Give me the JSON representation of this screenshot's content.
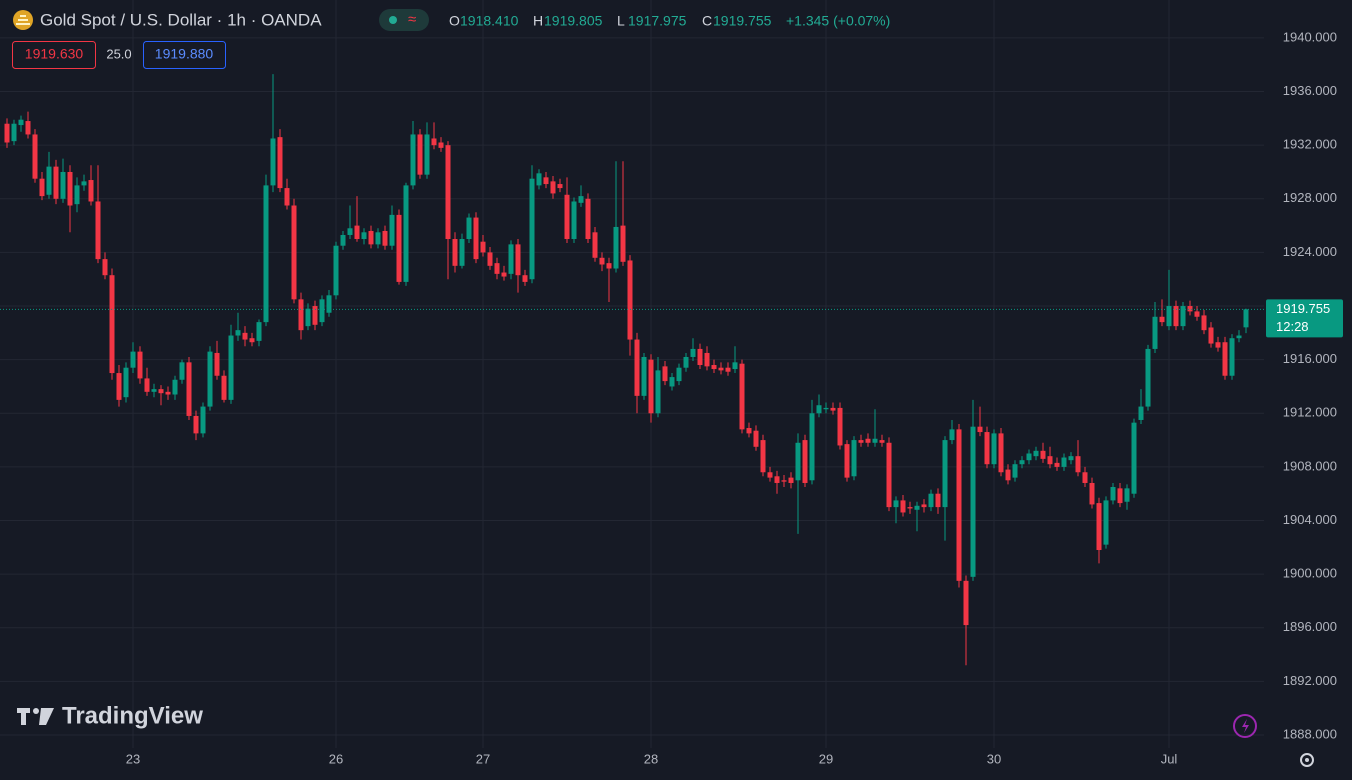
{
  "symbol_title": "Gold Spot / U.S. Dollar · 1h · OANDA",
  "ohlc_header": [
    {
      "label": "O",
      "value": "1918.410"
    },
    {
      "label": "H",
      "value": "1919.805"
    },
    {
      "label": "L",
      "value": "1917.975"
    },
    {
      "label": "C",
      "value": "1919.755"
    }
  ],
  "change": "+1.345 (+0.07%)",
  "quote": {
    "bid": "1919.630",
    "spread": "25.0",
    "ask": "1919.880"
  },
  "countdown": "12:28",
  "watermark": "TradingView",
  "chart_data": {
    "type": "candlestick",
    "up_color": "#089981",
    "down_color": "#f23645",
    "grid": true,
    "ylim": [
      1887.03,
      1942.83
    ],
    "yticks": [
      {
        "value": 1888,
        "label": "1888.000"
      },
      {
        "value": 1892,
        "label": "1892.000"
      },
      {
        "value": 1896,
        "label": "1896.000"
      },
      {
        "value": 1900,
        "label": "1900.000"
      },
      {
        "value": 1904,
        "label": "1904.000"
      },
      {
        "value": 1908,
        "label": "1908.000"
      },
      {
        "value": 1912,
        "label": "1912.000"
      },
      {
        "value": 1916,
        "label": "1916.000"
      },
      {
        "value": 1920,
        "label": "1920.000"
      },
      {
        "value": 1924,
        "label": "1924.000"
      },
      {
        "value": 1928,
        "label": "1928.000"
      },
      {
        "value": 1932,
        "label": "1932.000"
      },
      {
        "value": 1936,
        "label": "1936.000"
      },
      {
        "value": 1940,
        "label": "1940.000"
      }
    ],
    "categories": [
      null,
      null,
      null,
      null,
      null,
      null,
      null,
      null,
      null,
      null,
      null,
      null,
      null,
      null,
      null,
      null,
      null,
      null,
      "23",
      null,
      null,
      null,
      null,
      null,
      null,
      null,
      null,
      null,
      null,
      null,
      null,
      null,
      null,
      null,
      null,
      null,
      null,
      null,
      null,
      null,
      null,
      null,
      null,
      null,
      null,
      null,
      null,
      "26",
      null,
      null,
      null,
      null,
      null,
      null,
      null,
      null,
      null,
      null,
      null,
      null,
      null,
      null,
      null,
      null,
      null,
      null,
      null,
      null,
      "27",
      null,
      null,
      null,
      null,
      null,
      null,
      null,
      null,
      null,
      null,
      null,
      null,
      null,
      null,
      null,
      null,
      null,
      null,
      null,
      null,
      null,
      null,
      null,
      "28",
      null,
      null,
      null,
      null,
      null,
      null,
      null,
      null,
      null,
      null,
      null,
      null,
      null,
      null,
      null,
      null,
      null,
      null,
      null,
      null,
      null,
      null,
      null,
      null,
      "29",
      null,
      null,
      null,
      null,
      null,
      null,
      null,
      null,
      null,
      null,
      null,
      null,
      null,
      null,
      null,
      null,
      null,
      null,
      null,
      null,
      null,
      null,
      null,
      "30",
      null,
      null,
      null,
      null,
      null,
      null,
      null,
      null,
      null,
      null,
      null,
      null,
      null,
      null,
      null,
      null,
      null,
      null,
      null,
      null,
      null,
      null,
      null,
      null,
      "Jul",
      null,
      null,
      null,
      null,
      null,
      null,
      null,
      null,
      null,
      null,
      null
    ],
    "open": [
      1933.6,
      1932.3,
      1933.5,
      1933.8,
      1932.8,
      1929.5,
      1928.3,
      1930.4,
      1928.0,
      1930.0,
      1927.6,
      1929.0,
      1929.4,
      1927.8,
      1923.5,
      1922.3,
      1915.0,
      1913.2,
      1915.4,
      1916.6,
      1914.6,
      1913.6,
      1913.8,
      1913.6,
      1913.4,
      1914.5,
      1915.8,
      1911.8,
      1910.5,
      1912.5,
      1916.5,
      1914.8,
      1913.0,
      1917.8,
      1918.0,
      1917.6,
      1917.4,
      1918.8,
      1929.0,
      1932.6,
      1928.8,
      1927.5,
      1920.5,
      1918.5,
      1920.0,
      1918.8,
      1919.5,
      1920.8,
      1924.5,
      1925.3,
      1926.0,
      1925.0,
      1925.6,
      1924.6,
      1925.6,
      1924.5,
      1926.8,
      1921.8,
      1929.0,
      1932.8,
      1929.8,
      1932.5,
      1932.2,
      1932.0,
      1925.0,
      1923.0,
      1925.0,
      1926.6,
      1924.8,
      1924.0,
      1923.2,
      1922.5,
      1922.4,
      1924.6,
      1922.3,
      1922.0,
      1929.0,
      1929.6,
      1929.3,
      1929.1,
      1928.3,
      1925.0,
      1927.7,
      1928.0,
      1925.5,
      1923.6,
      1923.2,
      1922.8,
      1926.0,
      1923.4,
      1917.5,
      1913.3,
      1916.0,
      1912.0,
      1915.5,
      1914.0,
      1914.4,
      1915.4,
      1916.2,
      1916.8,
      1916.5,
      1915.6,
      1915.4,
      1915.4,
      1915.3,
      1915.7,
      1910.9,
      1910.7,
      1910.0,
      1907.6,
      1907.3,
      1907.0,
      1907.2,
      1907.0,
      1910.0,
      1907.0,
      1912.0,
      1912.3,
      1912.4,
      1912.4,
      1909.7,
      1907.3,
      1910.0,
      1910.1,
      1909.8,
      1910.0,
      1909.8,
      1905.0,
      1905.5,
      1905.0,
      1904.8,
      1905.2,
      1905.0,
      1906.0,
      1905.0,
      1910.0,
      1910.8,
      1899.5,
      1899.8,
      1911.0,
      1910.6,
      1908.2,
      1910.5,
      1907.8,
      1907.2,
      1908.2,
      1908.5,
      1908.8,
      1909.2,
      1908.8,
      1908.3,
      1908.0,
      1908.5,
      1908.8,
      1907.6,
      1906.8,
      1905.3,
      1902.2,
      1905.5,
      1906.4,
      1905.4,
      1906.0,
      1911.5,
      1912.5,
      1916.8,
      1919.2,
      1918.5,
      1920.0,
      1918.5,
      1920.0,
      1919.6,
      1919.3,
      1918.4,
      1917.3,
      1917.3,
      1914.8,
      1917.6,
      1918.41
    ],
    "high": [
      1934.0,
      1933.9,
      1934.2,
      1934.5,
      1933.2,
      1930.0,
      1931.5,
      1930.9,
      1931.0,
      1930.5,
      1929.6,
      1929.8,
      1930.5,
      1930.5,
      1924.0,
      1922.8,
      1915.6,
      1915.8,
      1917.3,
      1917.0,
      1915.4,
      1914.2,
      1914.1,
      1914.0,
      1914.8,
      1916.0,
      1916.2,
      1912.2,
      1912.8,
      1917.0,
      1917.4,
      1915.2,
      1918.6,
      1919.5,
      1918.5,
      1918.0,
      1919.0,
      1929.8,
      1937.3,
      1933.2,
      1929.5,
      1928.0,
      1921.0,
      1920.2,
      1920.4,
      1920.8,
      1921.2,
      1924.8,
      1925.6,
      1927.5,
      1928.2,
      1925.8,
      1926.0,
      1925.8,
      1926.0,
      1927.5,
      1927.2,
      1929.2,
      1933.8,
      1933.2,
      1933.7,
      1933.7,
      1932.6,
      1932.3,
      1925.5,
      1925.4,
      1926.9,
      1927.0,
      1925.3,
      1924.4,
      1923.6,
      1923.0,
      1924.9,
      1925.0,
      1922.7,
      1930.5,
      1930.2,
      1930.0,
      1929.7,
      1929.5,
      1929.6,
      1928.1,
      1929.0,
      1928.4,
      1925.9,
      1924.0,
      1923.6,
      1930.8,
      1930.8,
      1923.8,
      1918.0,
      1916.5,
      1916.4,
      1916.2,
      1915.9,
      1915.0,
      1915.7,
      1916.5,
      1917.6,
      1917.2,
      1917.0,
      1916.0,
      1915.8,
      1915.8,
      1917.0,
      1916.0,
      1911.3,
      1911.1,
      1910.4,
      1908.0,
      1907.7,
      1907.4,
      1907.6,
      1910.5,
      1910.4,
      1913.0,
      1913.4,
      1912.8,
      1912.8,
      1912.8,
      1910.0,
      1910.3,
      1910.4,
      1910.5,
      1912.3,
      1910.4,
      1910.2,
      1905.8,
      1905.9,
      1905.4,
      1905.4,
      1905.6,
      1906.3,
      1906.4,
      1910.3,
      1911.5,
      1911.2,
      1899.9,
      1913.0,
      1912.5,
      1911.0,
      1910.8,
      1910.9,
      1908.2,
      1908.5,
      1908.8,
      1909.3,
      1909.5,
      1909.8,
      1909.5,
      1908.7,
      1909.0,
      1909.1,
      1910.0,
      1908.0,
      1907.2,
      1905.7,
      1905.8,
      1906.8,
      1906.8,
      1906.7,
      1911.6,
      1913.8,
      1917.1,
      1920.3,
      1920.5,
      1922.7,
      1920.4,
      1920.3,
      1920.4,
      1920.0,
      1919.7,
      1918.8,
      1917.7,
      1917.7,
      1917.9,
      1918.2,
      1919.805
    ],
    "low": [
      1931.8,
      1932.0,
      1933.0,
      1932.5,
      1929.2,
      1927.9,
      1928.0,
      1927.6,
      1927.7,
      1925.5,
      1927.0,
      1928.6,
      1927.5,
      1923.2,
      1922.0,
      1914.5,
      1912.5,
      1912.8,
      1915.0,
      1914.2,
      1913.3,
      1913.2,
      1912.6,
      1913.0,
      1913.0,
      1914.2,
      1911.5,
      1910.0,
      1910.2,
      1912.2,
      1914.5,
      1912.8,
      1912.7,
      1917.4,
      1917.0,
      1917.0,
      1917.0,
      1918.5,
      1928.5,
      1928.5,
      1927.2,
      1920.2,
      1917.5,
      1918.2,
      1918.2,
      1918.5,
      1919.2,
      1920.5,
      1924.2,
      1925.0,
      1924.8,
      1924.6,
      1924.3,
      1924.3,
      1924.2,
      1924.2,
      1921.6,
      1921.5,
      1928.7,
      1929.5,
      1929.5,
      1931.7,
      1931.5,
      1922.0,
      1922.5,
      1922.8,
      1924.7,
      1923.2,
      1923.7,
      1922.7,
      1922.0,
      1921.9,
      1922.0,
      1921.0,
      1921.5,
      1921.7,
      1928.7,
      1928.8,
      1928.0,
      1928.5,
      1924.7,
      1924.7,
      1927.4,
      1924.7,
      1923.3,
      1922.6,
      1920.3,
      1922.5,
      1923.0,
      1916.3,
      1912.0,
      1913.0,
      1911.3,
      1911.7,
      1914.1,
      1913.7,
      1914.1,
      1915.1,
      1915.9,
      1915.3,
      1915.2,
      1915.0,
      1914.9,
      1914.8,
      1915.0,
      1910.5,
      1910.2,
      1909.2,
      1907.3,
      1906.9,
      1906.0,
      1906.5,
      1906.4,
      1903.0,
      1906.5,
      1906.7,
      1911.7,
      1912.0,
      1911.9,
      1909.3,
      1906.9,
      1907.0,
      1909.5,
      1909.5,
      1909.5,
      1909.5,
      1904.7,
      1903.8,
      1904.3,
      1904.5,
      1903.2,
      1904.6,
      1904.7,
      1904.5,
      1902.5,
      1909.7,
      1899.0,
      1893.2,
      1899.5,
      1910.3,
      1907.9,
      1907.9,
      1907.3,
      1906.7,
      1906.9,
      1907.9,
      1908.2,
      1908.5,
      1908.3,
      1907.9,
      1907.7,
      1907.7,
      1908.2,
      1907.3,
      1906.5,
      1904.9,
      1900.8,
      1901.9,
      1905.2,
      1905.0,
      1904.8,
      1905.7,
      1911.2,
      1912.2,
      1916.5,
      1918.5,
      1918.2,
      1918.2,
      1918.2,
      1919.3,
      1918.9,
      1917.9,
      1916.9,
      1916.6,
      1914.5,
      1914.5,
      1917.3,
      1917.975
    ],
    "close": [
      1932.2,
      1933.6,
      1933.9,
      1932.8,
      1929.5,
      1928.2,
      1930.4,
      1928.0,
      1930.0,
      1927.5,
      1929.0,
      1929.3,
      1927.8,
      1923.5,
      1922.3,
      1915.0,
      1913.0,
      1915.4,
      1916.6,
      1914.6,
      1913.6,
      1913.8,
      1913.5,
      1913.4,
      1914.5,
      1915.8,
      1911.8,
      1910.5,
      1912.5,
      1916.6,
      1914.8,
      1913.0,
      1917.8,
      1918.2,
      1917.5,
      1917.3,
      1918.8,
      1929.0,
      1932.5,
      1928.8,
      1927.5,
      1920.5,
      1918.2,
      1919.8,
      1918.6,
      1920.5,
      1920.8,
      1924.5,
      1925.3,
      1925.8,
      1925.0,
      1925.5,
      1924.6,
      1925.5,
      1924.5,
      1926.8,
      1921.8,
      1929.0,
      1932.8,
      1929.8,
      1932.8,
      1932.0,
      1931.8,
      1925.0,
      1923.0,
      1925.0,
      1926.6,
      1923.5,
      1924.0,
      1923.0,
      1922.4,
      1922.2,
      1924.6,
      1922.3,
      1921.8,
      1929.5,
      1929.9,
      1929.1,
      1928.4,
      1928.8,
      1925.0,
      1927.8,
      1928.2,
      1925.0,
      1923.6,
      1923.1,
      1922.8,
      1925.9,
      1923.3,
      1917.5,
      1913.3,
      1916.2,
      1912.0,
      1915.2,
      1914.4,
      1914.7,
      1915.4,
      1916.2,
      1916.8,
      1915.6,
      1915.5,
      1915.3,
      1915.2,
      1915.1,
      1915.8,
      1910.8,
      1910.5,
      1909.5,
      1907.6,
      1907.2,
      1906.8,
      1906.9,
      1906.8,
      1909.8,
      1906.8,
      1912.0,
      1912.6,
      1912.4,
      1912.2,
      1909.6,
      1907.2,
      1910.0,
      1909.8,
      1909.8,
      1910.1,
      1909.8,
      1905.0,
      1905.5,
      1904.6,
      1904.9,
      1905.1,
      1905.0,
      1906.0,
      1905.0,
      1910.0,
      1910.8,
      1899.5,
      1896.2,
      1911.0,
      1910.6,
      1908.2,
      1910.5,
      1907.6,
      1907.0,
      1908.2,
      1908.5,
      1909.0,
      1909.2,
      1908.6,
      1908.2,
      1908.0,
      1908.7,
      1908.8,
      1907.6,
      1906.8,
      1905.2,
      1901.8,
      1905.5,
      1906.5,
      1905.3,
      1906.4,
      1911.3,
      1912.5,
      1916.8,
      1919.2,
      1918.8,
      1920.0,
      1918.5,
      1920.0,
      1919.6,
      1919.2,
      1918.2,
      1917.2,
      1916.9,
      1914.8,
      1917.6,
      1917.8,
      1919.755
    ]
  }
}
